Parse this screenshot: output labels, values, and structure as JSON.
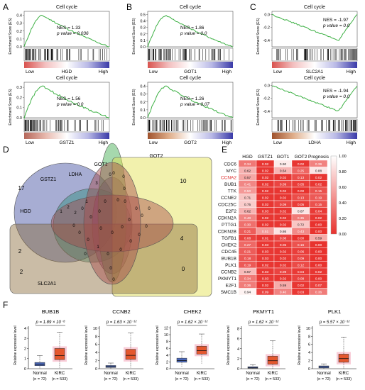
{
  "panels": {
    "A": "A",
    "B": "B",
    "C": "C",
    "D": "D",
    "E": "E",
    "F": "F"
  },
  "colors": {
    "curve": "#3cb043",
    "low_end": "#d9534f",
    "high_end": "#3a3aa8",
    "heat_low": "#e8322e",
    "heat_high": "#ffffff",
    "box_normal": "#4a69bd",
    "box_kirc": "#e4572e",
    "box_kirc_shade": "#f6b8c8"
  },
  "gsea": [
    {
      "panel": "A",
      "title": "Cell cycle",
      "gene": "HGD",
      "nes": "NES = 1.33",
      "p": "p value = 0.036",
      "direction": "pos",
      "ylabel": "Enrichment Score (ES)",
      "yticks": [
        "0.0",
        "0.1",
        "0.2",
        "0.3",
        "0.4"
      ],
      "ylim": [
        0,
        0.45
      ],
      "low": "Low",
      "high": "High",
      "bar": [
        "#d9534f",
        "#f3c0c0",
        "#ffffff",
        "#b9b9e6",
        "#3a3aa8"
      ]
    },
    {
      "panel": "B",
      "title": "Cell cycle",
      "gene": "GOT1",
      "nes": "NES = 1.86",
      "p": "p value = 0.0",
      "direction": "pos",
      "ylabel": "Enrichment Score (ES)",
      "yticks": [
        "0.0",
        "0.1",
        "0.2",
        "0.3",
        "0.4",
        "0.5"
      ],
      "ylim": [
        0,
        0.55
      ],
      "low": "Low",
      "high": "High",
      "bar": [
        "#d9534f",
        "#f3c0c0",
        "#ffffff",
        "#b9b9e6",
        "#3a3aa8"
      ]
    },
    {
      "panel": "C",
      "title": "Cell cycle",
      "gene": "SLC2A1",
      "nes": "NES = -1.97",
      "p": "p value = 0.0",
      "direction": "neg",
      "ylabel": "Enrichment Score (ES)",
      "yticks": [
        "-0.4",
        "-0.2",
        "0.0"
      ],
      "ylim": [
        -0.5,
        0.05
      ],
      "low": "Low",
      "high": "High",
      "bar": [
        "#d9534f",
        "#f3c0c0",
        "#ffffff",
        "#b9b9e6",
        "#3a3aa8"
      ]
    },
    {
      "panel": "A2",
      "title": "Cell cycle",
      "gene": "GSTZ1",
      "nes": "NES = 1.56",
      "p": "p value = 0.0",
      "direction": "pos",
      "ylabel": "Enrichment Score (ES)",
      "yticks": [
        "0.0",
        "0.1",
        "0.2",
        "0.3"
      ],
      "ylim": [
        0,
        0.35
      ],
      "low": "Low",
      "high": "High",
      "bar": [
        "#b5675a",
        "#e7b8ad",
        "#ffffff",
        "#b9b9e6",
        "#3a3aa8"
      ]
    },
    {
      "panel": "B2",
      "title": "Cell cycle",
      "gene": "GOT2",
      "nes": "NES = 1.26",
      "p": "p value = 0.07",
      "direction": "pos",
      "ylabel": "Enrichment Score (ES)",
      "yticks": [
        "0.0",
        "0.1",
        "0.2",
        "0.3",
        "0.4"
      ],
      "ylim": [
        0,
        0.45
      ],
      "low": "Low",
      "high": "High",
      "bar": [
        "#a0522d",
        "#dfae8a",
        "#ffffff",
        "#b9b9e6",
        "#3a3aa8"
      ]
    },
    {
      "panel": "C2",
      "title": "Cell cycle",
      "gene": "LDHA",
      "nes": "NES = -1.94",
      "p": "p value = 0.0",
      "direction": "neg",
      "ylabel": "Enrichment Score (ES)",
      "yticks": [
        "-0.4",
        "-0.2",
        "0.0"
      ],
      "ylim": [
        -0.5,
        0.05
      ],
      "low": "Low",
      "high": "High",
      "bar": [
        "#a0522d",
        "#dfae8a",
        "#ffffff",
        "#b9b9e6",
        "#3a3aa8"
      ]
    }
  ],
  "venn": {
    "sets": [
      {
        "name": "HGD",
        "color": "#3b4a9e"
      },
      {
        "name": "GSTZ1",
        "color": "#2e8b7a"
      },
      {
        "name": "LDHA",
        "color": "#7a3c8e"
      },
      {
        "name": "GOT1",
        "color": "#3aa84a"
      },
      {
        "name": "GOT2",
        "color": "#e3e04a"
      },
      {
        "name": "SLC2A1",
        "color": "#8a6a3a"
      }
    ],
    "counts": [
      {
        "v": "17"
      },
      {
        "v": "2"
      },
      {
        "v": "10"
      },
      {
        "v": "4"
      },
      {
        "v": "0"
      },
      {
        "v": "2"
      },
      {
        "v": "2"
      },
      {
        "v": "2"
      },
      {
        "v": "0"
      },
      {
        "v": "0"
      },
      {
        "v": "0"
      },
      {
        "v": "3"
      },
      {
        "v": "0"
      },
      {
        "v": "0"
      },
      {
        "v": "1"
      },
      {
        "v": "0"
      },
      {
        "v": "1"
      },
      {
        "v": "0"
      },
      {
        "v": "0"
      },
      {
        "v": "0"
      },
      {
        "v": "0"
      },
      {
        "v": "0"
      },
      {
        "v": "0"
      },
      {
        "v": "0"
      },
      {
        "v": "0"
      },
      {
        "v": "0"
      },
      {
        "v": "1"
      },
      {
        "v": "0"
      },
      {
        "v": "0"
      },
      {
        "v": "0"
      },
      {
        "v": "0"
      },
      {
        "v": "0"
      },
      {
        "v": "0"
      },
      {
        "v": "0"
      },
      {
        "v": "0"
      },
      {
        "v": "0"
      },
      {
        "v": "0"
      },
      {
        "v": "0"
      },
      {
        "v": "0"
      },
      {
        "v": "0"
      }
    ]
  },
  "chart_data": [
    {
      "type": "line",
      "title": "Cell cycle",
      "ylabel": "Enrichment Score (ES)",
      "series": [
        {
          "name": "HGD",
          "nes": 1.33,
          "p": 0.036
        },
        {
          "name": "GOT1",
          "nes": 1.86,
          "p": 0.0
        },
        {
          "name": "SLC2A1",
          "nes": -1.97,
          "p": 0.0
        },
        {
          "name": "GSTZ1",
          "nes": 1.56,
          "p": 0.0
        },
        {
          "name": "GOT2",
          "nes": 1.26,
          "p": 0.07
        },
        {
          "name": "LDHA",
          "nes": -1.94,
          "p": 0.0
        }
      ]
    },
    {
      "type": "heatmap",
      "columns": [
        "HGD",
        "GSTZ1",
        "GOT1",
        "GOT2",
        "Prognosis"
      ],
      "rows": [
        "CDC6",
        "MYC",
        "CCNA2",
        "BUB1",
        "TTK",
        "CCNE2",
        "CDC25C",
        "E2F2",
        "CDKN2A",
        "PTTG1",
        "CDKN2B",
        "TGFB1",
        "CHEK2",
        "CDC45",
        "BUB1B",
        "PLK1",
        "CCNB2",
        "PKMYT1",
        "E2F1",
        "SMC1B"
      ],
      "highlight_row": "CCNA2",
      "colorbar_ticks": [
        "1.00",
        "0.80",
        "0.60",
        "0.40",
        "0.20",
        "0.00"
      ],
      "values": [
        [
          0.34,
          0.02,
          0.9,
          0.02,
          0.39
        ],
        [
          0.62,
          0.02,
          0.64,
          0.25,
          0.88
        ],
        [
          0.57,
          0.02,
          0.02,
          0.13,
          0.02
        ],
        [
          0.41,
          0.02,
          0.09,
          0.05,
          0.02
        ],
        [
          0.5,
          0.02,
          0.02,
          0.0,
          0.15
        ],
        [
          0.71,
          0.02,
          0.02,
          0.13,
          0.19
        ],
        [
          0.75,
          0.02,
          0.09,
          0.05,
          0.15
        ],
        [
          0.62,
          0.03,
          0.02,
          0.87,
          0.04
        ],
        [
          0.4,
          0.02,
          0.02,
          0.35,
          0.02
        ],
        [
          0.3,
          0.02,
          0.02,
          0.72,
          0.0
        ],
        [
          0.21,
          0.51,
          0.86,
          0.43,
          0.0
        ],
        [
          0.08,
          0.01,
          0.08,
          0.0,
          0.59
        ],
        [
          0.27,
          0.03,
          0.05,
          0.16,
          0.0
        ],
        [
          0.21,
          0.03,
          0.02,
          0.06,
          0.0
        ],
        [
          0.18,
          0.03,
          0.02,
          0.09,
          0.0
        ],
        [
          0.19,
          0.02,
          0.02,
          0.12,
          0.0
        ],
        [
          0.67,
          0.03,
          0.09,
          0.04,
          0.02
        ],
        [
          0.34,
          0.03,
          0.02,
          0.08,
          0.0
        ],
        [
          0.36,
          0.02,
          0.59,
          0.02,
          0.07
        ],
        [
          0.94,
          0.09,
          0.4,
          0.03,
          0.36
        ]
      ]
    },
    {
      "type": "bar",
      "ylabel": "Relative expression level",
      "groups": [
        "Normal",
        "KIRC"
      ],
      "group_n": [
        "(n = 72)",
        "(n = 533)"
      ],
      "plots": [
        {
          "gene": "BUB1B",
          "p_label": "p = 1.89 × 10⁻⁸",
          "yticks": [
            "0",
            "1",
            "2",
            "3",
            "4"
          ],
          "ylim": [
            0,
            4.2
          ],
          "normal": {
            "q1": 0.3,
            "median": 0.45,
            "q3": 0.62,
            "whisker_low": 0.05,
            "whisker_high": 1.3
          },
          "kirc": {
            "q1": 0.9,
            "median": 1.3,
            "q3": 2.0,
            "whisker_low": 0.05,
            "whisker_high": 3.6
          }
        },
        {
          "gene": "CCNB2",
          "p_label": "p = 1.63 × 10⁻¹²",
          "yticks": [
            "0",
            "2",
            "4",
            "6",
            "8",
            "10"
          ],
          "ylim": [
            0,
            10.5
          ],
          "normal": {
            "q1": 0.3,
            "median": 0.55,
            "q3": 0.8,
            "whisker_low": 0.05,
            "whisker_high": 1.4
          },
          "kirc": {
            "q1": 2.3,
            "median": 3.3,
            "q3": 4.8,
            "whisker_low": 0.2,
            "whisker_high": 8.8
          }
        },
        {
          "gene": "CHEK2",
          "p_label": "p = 1.62 × 10⁻¹²",
          "yticks": [
            "0",
            "2",
            "4",
            "6",
            "8",
            "10",
            "12"
          ],
          "ylim": [
            0,
            12.5
          ],
          "normal": {
            "q1": 1.9,
            "median": 2.4,
            "q3": 3.1,
            "whisker_low": 0.6,
            "whisker_high": 5.0
          },
          "kirc": {
            "q1": 4.3,
            "median": 5.3,
            "q3": 6.6,
            "whisker_low": 1.5,
            "whisker_high": 10.2
          }
        },
        {
          "gene": "PKMYT1",
          "p_label": "p = 1.62 × 10⁻¹²",
          "yticks": [
            "0",
            "2",
            "4",
            "6",
            "8"
          ],
          "ylim": [
            0,
            8.5
          ],
          "normal": {
            "q1": 0.1,
            "median": 0.25,
            "q3": 0.4,
            "whisker_low": 0.0,
            "whisker_high": 0.8
          },
          "kirc": {
            "q1": 0.9,
            "median": 1.6,
            "q3": 2.5,
            "whisker_low": 0.05,
            "whisker_high": 5.6
          }
        },
        {
          "gene": "PLK1",
          "p_label": "p = 5.57 × 10⁻¹²",
          "yticks": [
            "0",
            "2",
            "4",
            "6",
            "8",
            "10"
          ],
          "ylim": [
            0,
            10.5
          ],
          "normal": {
            "q1": 0.2,
            "median": 0.45,
            "q3": 0.7,
            "whisker_low": 0.0,
            "whisker_high": 1.2
          },
          "kirc": {
            "q1": 1.6,
            "median": 2.5,
            "q3": 3.6,
            "whisker_low": 0.1,
            "whisker_high": 7.8
          }
        }
      ]
    }
  ]
}
